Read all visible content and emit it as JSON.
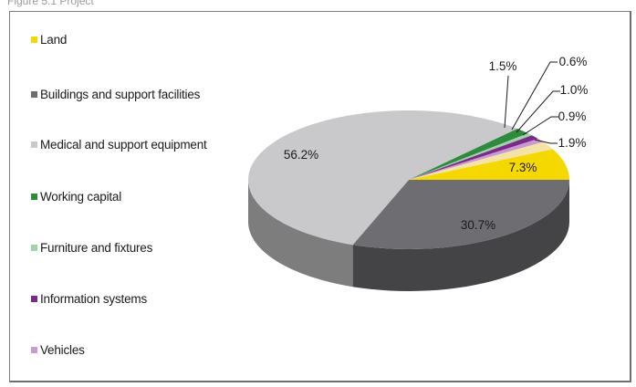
{
  "caption_fragment": "Figure 5.1 Project",
  "chart_data": {
    "type": "pie",
    "title": "",
    "legend_position": "left",
    "labels": [
      "Land",
      "Buildings and support facilities",
      "Medical and support equipment",
      "Working capital",
      "Furniture and fixtures",
      "Information systems",
      "Vehicles"
    ],
    "values": [
      7.3,
      30.7,
      56.2,
      1.5,
      0.6,
      1.0,
      0.9
    ],
    "value_labels": [
      "7.3%",
      "30.7%",
      "56.2%",
      "1.5%",
      "0.6%",
      "1.0%",
      "0.9%"
    ],
    "extra_slice": {
      "value": 1.9,
      "label": "1.9%",
      "color": "#f4e3a6"
    },
    "colors": [
      "#f5d800",
      "#6e6e72",
      "#c9c9cc",
      "#2e8b3e",
      "#9fd3a8",
      "#7b2a8c",
      "#c99ad0"
    ]
  }
}
